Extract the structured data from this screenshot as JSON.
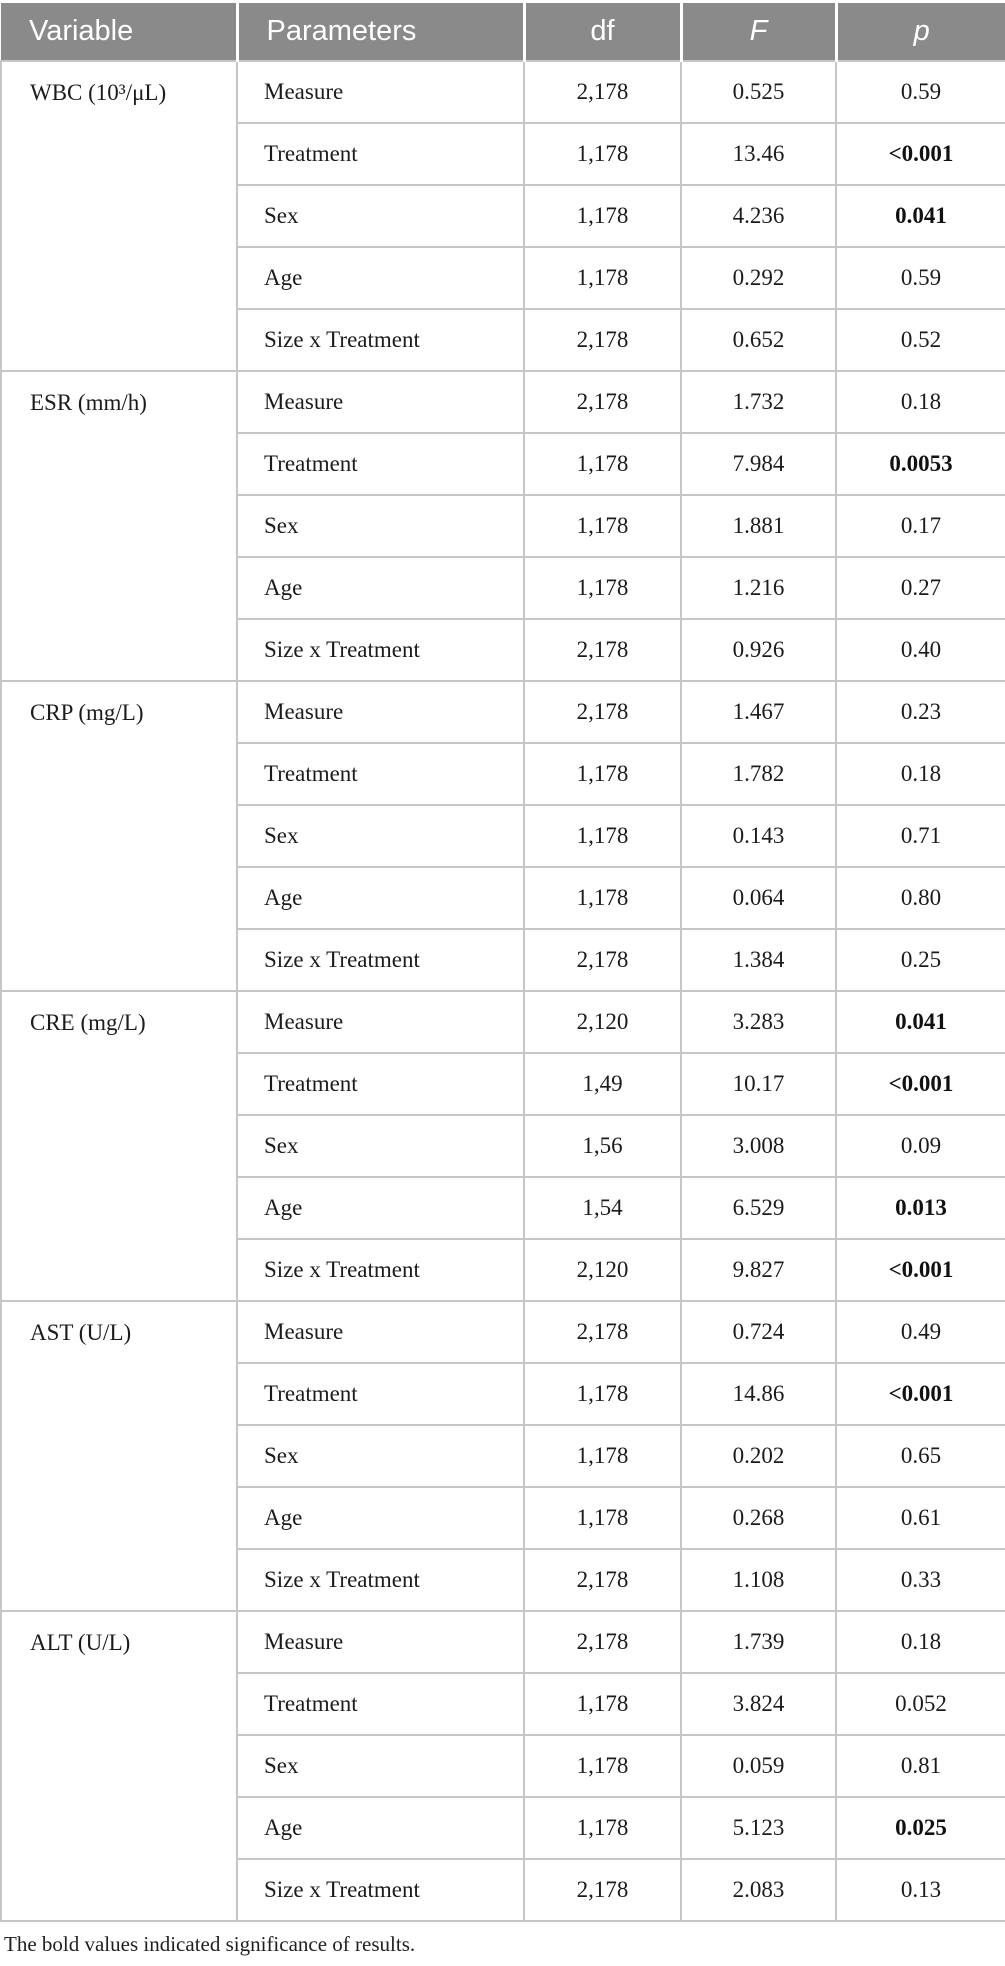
{
  "colors": {
    "header_bg": "#8a8a8a",
    "header_text": "#ffffff",
    "border": "#c6c6c6",
    "body_text": "#1b1b1b"
  },
  "header": {
    "variable": "Variable",
    "parameters": "Parameters",
    "df": "df",
    "f": "F",
    "p": "p"
  },
  "footnote": "The bold values indicated significance of results.",
  "chart_data": {
    "type": "table",
    "columns": [
      "Variable",
      "Parameters",
      "df",
      "F",
      "p"
    ],
    "note": "p values in bold are significant"
  },
  "groups": [
    {
      "variable": "WBC (10³/μL)",
      "rows": [
        {
          "parameter": "Measure",
          "df": "2,178",
          "f": "0.525",
          "p": "0.59",
          "bold": false
        },
        {
          "parameter": "Treatment",
          "df": "1,178",
          "f": "13.46",
          "p": "<0.001",
          "bold": true
        },
        {
          "parameter": "Sex",
          "df": "1,178",
          "f": "4.236",
          "p": "0.041",
          "bold": true
        },
        {
          "parameter": "Age",
          "df": "1,178",
          "f": "0.292",
          "p": "0.59",
          "bold": false
        },
        {
          "parameter": "Size x Treatment",
          "df": "2,178",
          "f": "0.652",
          "p": "0.52",
          "bold": false
        }
      ]
    },
    {
      "variable": "ESR (mm/h)",
      "rows": [
        {
          "parameter": "Measure",
          "df": "2,178",
          "f": "1.732",
          "p": "0.18",
          "bold": false
        },
        {
          "parameter": "Treatment",
          "df": "1,178",
          "f": "7.984",
          "p": "0.0053",
          "bold": true
        },
        {
          "parameter": "Sex",
          "df": "1,178",
          "f": "1.881",
          "p": "0.17",
          "bold": false
        },
        {
          "parameter": "Age",
          "df": "1,178",
          "f": "1.216",
          "p": "0.27",
          "bold": false
        },
        {
          "parameter": "Size x Treatment",
          "df": "2,178",
          "f": "0.926",
          "p": "0.40",
          "bold": false
        }
      ]
    },
    {
      "variable": "CRP (mg/L)",
      "rows": [
        {
          "parameter": "Measure",
          "df": "2,178",
          "f": "1.467",
          "p": "0.23",
          "bold": false
        },
        {
          "parameter": "Treatment",
          "df": "1,178",
          "f": "1.782",
          "p": "0.18",
          "bold": false
        },
        {
          "parameter": "Sex",
          "df": "1,178",
          "f": "0.143",
          "p": "0.71",
          "bold": false
        },
        {
          "parameter": "Age",
          "df": "1,178",
          "f": "0.064",
          "p": "0.80",
          "bold": false
        },
        {
          "parameter": "Size x Treatment",
          "df": "2,178",
          "f": "1.384",
          "p": "0.25",
          "bold": false
        }
      ]
    },
    {
      "variable": "CRE (mg/L)",
      "rows": [
        {
          "parameter": "Measure",
          "df": "2,120",
          "f": "3.283",
          "p": "0.041",
          "bold": true
        },
        {
          "parameter": "Treatment",
          "df": "1,49",
          "f": "10.17",
          "p": "<0.001",
          "bold": true
        },
        {
          "parameter": "Sex",
          "df": "1,56",
          "f": "3.008",
          "p": "0.09",
          "bold": false
        },
        {
          "parameter": "Age",
          "df": "1,54",
          "f": "6.529",
          "p": "0.013",
          "bold": true
        },
        {
          "parameter": "Size x Treatment",
          "df": "2,120",
          "f": "9.827",
          "p": "<0.001",
          "bold": true
        }
      ]
    },
    {
      "variable": "AST (U/L)",
      "rows": [
        {
          "parameter": "Measure",
          "df": "2,178",
          "f": "0.724",
          "p": "0.49",
          "bold": false
        },
        {
          "parameter": "Treatment",
          "df": "1,178",
          "f": "14.86",
          "p": "<0.001",
          "bold": true
        },
        {
          "parameter": "Sex",
          "df": "1,178",
          "f": "0.202",
          "p": "0.65",
          "bold": false
        },
        {
          "parameter": "Age",
          "df": "1,178",
          "f": "0.268",
          "p": "0.61",
          "bold": false
        },
        {
          "parameter": "Size x Treatment",
          "df": "2,178",
          "f": "1.108",
          "p": "0.33",
          "bold": false
        }
      ]
    },
    {
      "variable": "ALT (U/L)",
      "rows": [
        {
          "parameter": "Measure",
          "df": "2,178",
          "f": "1.739",
          "p": "0.18",
          "bold": false
        },
        {
          "parameter": "Treatment",
          "df": "1,178",
          "f": "3.824",
          "p": "0.052",
          "bold": false
        },
        {
          "parameter": "Sex",
          "df": "1,178",
          "f": "0.059",
          "p": "0.81",
          "bold": false
        },
        {
          "parameter": "Age",
          "df": "1,178",
          "f": "5.123",
          "p": "0.025",
          "bold": true
        },
        {
          "parameter": "Size x Treatment",
          "df": "2,178",
          "f": "2.083",
          "p": "0.13",
          "bold": false
        }
      ]
    }
  ]
}
